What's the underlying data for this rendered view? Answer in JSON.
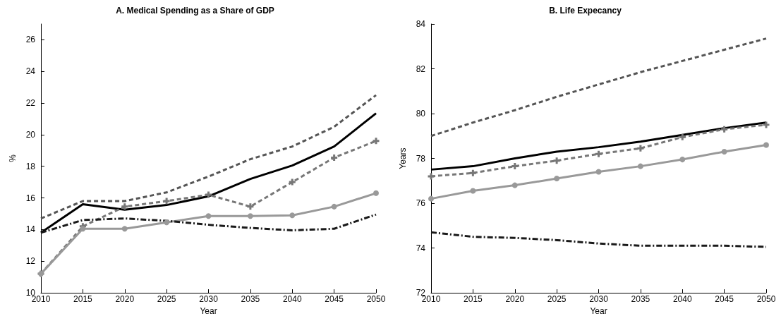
{
  "chart_data": [
    {
      "type": "line",
      "title": "A. Medical Spending as a Share of GDP",
      "xlabel": "Year",
      "ylabel": "%",
      "x": [
        2010,
        2015,
        2020,
        2025,
        2030,
        2035,
        2040,
        2045,
        2050
      ],
      "xlim": [
        2010,
        2050
      ],
      "xticks": [
        2010,
        2015,
        2020,
        2025,
        2030,
        2035,
        2040,
        2045,
        2050
      ],
      "ylim": [
        10,
        27
      ],
      "yticks": [
        10,
        12,
        14,
        16,
        18,
        20,
        22,
        24,
        26
      ],
      "grid": false,
      "series": [
        {
          "color": "#000000",
          "marker": "none",
          "line_style": "solid",
          "values": [
            13.8,
            15.6,
            15.25,
            15.55,
            16.1,
            17.2,
            18.05,
            19.25,
            21.35
          ]
        },
        {
          "color": "#555555",
          "marker": "none",
          "line_style": "dashed",
          "values": [
            14.7,
            15.8,
            15.8,
            16.35,
            17.35,
            18.45,
            19.25,
            20.5,
            22.5
          ]
        },
        {
          "color": "#777777",
          "marker": "cross",
          "line_style": "dashed",
          "values": [
            11.2,
            14.2,
            15.45,
            15.8,
            16.2,
            15.45,
            17.0,
            18.55,
            19.6
          ]
        },
        {
          "color": "#999999",
          "marker": "circle",
          "line_style": "solid",
          "values": [
            11.2,
            14.05,
            14.05,
            14.45,
            14.85,
            14.85,
            14.9,
            15.45,
            16.3
          ]
        },
        {
          "color": "#1a1a1a",
          "marker": "none",
          "line_style": "dashdot",
          "values": [
            13.8,
            14.6,
            14.7,
            14.55,
            14.3,
            14.1,
            13.95,
            14.05,
            14.95
          ]
        }
      ]
    },
    {
      "type": "line",
      "title": "B. Life Expecancy",
      "xlabel": "Year",
      "ylabel": "Years",
      "x": [
        2010,
        2015,
        2020,
        2025,
        2030,
        2035,
        2040,
        2045,
        2050
      ],
      "xlim": [
        2010,
        2050
      ],
      "xticks": [
        2010,
        2015,
        2020,
        2025,
        2030,
        2035,
        2040,
        2045,
        2050
      ],
      "ylim": [
        72,
        84
      ],
      "yticks": [
        72,
        74,
        76,
        78,
        80,
        82,
        84
      ],
      "grid": false,
      "series": [
        {
          "color": "#000000",
          "marker": "none",
          "line_style": "solid",
          "values": [
            77.5,
            77.65,
            78.0,
            78.3,
            78.5,
            78.75,
            79.05,
            79.35,
            79.6
          ]
        },
        {
          "color": "#555555",
          "marker": "none",
          "line_style": "dashed",
          "values": [
            79.0,
            79.6,
            80.15,
            80.75,
            81.3,
            81.85,
            82.35,
            82.85,
            83.35
          ]
        },
        {
          "color": "#777777",
          "marker": "cross",
          "line_style": "dashed",
          "values": [
            77.2,
            77.35,
            77.65,
            77.9,
            78.2,
            78.45,
            78.95,
            79.3,
            79.5
          ]
        },
        {
          "color": "#999999",
          "marker": "circle",
          "line_style": "solid",
          "values": [
            76.2,
            76.55,
            76.8,
            77.1,
            77.4,
            77.65,
            77.95,
            78.3,
            78.6
          ]
        },
        {
          "color": "#1a1a1a",
          "marker": "none",
          "line_style": "dashdot",
          "values": [
            74.7,
            74.5,
            74.45,
            74.35,
            74.2,
            74.1,
            74.1,
            74.1,
            74.05
          ]
        }
      ]
    }
  ]
}
